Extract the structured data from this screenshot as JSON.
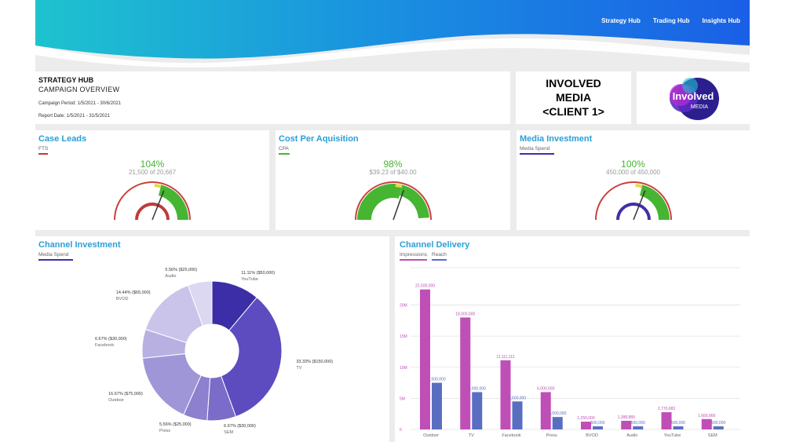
{
  "nav": {
    "items": [
      "Strategy Hub",
      "Trading Hub",
      "Insights Hub"
    ]
  },
  "header": {
    "title": "STRATEGY HUB",
    "subtitle": "CAMPAIGN OVERVIEW",
    "campaign_period": "Campaign Period: 1/5/2021 - 30/6/2021",
    "report_date": "Report Date: 1/5/2021 - 31/5/2021"
  },
  "client": {
    "line1": "INVOLVED",
    "line2": "MEDIA",
    "line3": "<CLIENT 1>"
  },
  "logo": {
    "line1": "Involved",
    "line2": "MEDIA"
  },
  "colors": {
    "accent_blue": "#2a9fd8",
    "green": "#46b532",
    "red_gauge": "#c03a3a",
    "purple_gauge": "#3f2fa8",
    "impressions": "#bf4fb7",
    "reach": "#5a6ec1"
  },
  "kpis": [
    {
      "title": "Case Leads",
      "sub": "FTS",
      "pct": "104%",
      "detail": "21,500  of 20,667",
      "progress": 1.04,
      "ring_color": "#c03a3a",
      "underline": "#c03a3a"
    },
    {
      "title": "Cost Per Aquisition",
      "sub": "CPA",
      "pct": "98%",
      "detail": "$39.23  of $40.00",
      "progress": 0.98,
      "ring_color": "#46b532",
      "underline": "#46b532"
    },
    {
      "title": "Media Investment",
      "sub": "Media Spend",
      "pct": "100%",
      "detail": "450,000  of 450,000",
      "progress": 1.0,
      "ring_color": "#3f2fa8",
      "underline": "#3f2fa8"
    }
  ],
  "channel_investment": {
    "title": "Channel Investment",
    "sub": "Media Spend"
  },
  "channel_delivery": {
    "title": "Channel Delivery",
    "legend": [
      "Impressions",
      "Reach"
    ]
  },
  "chart_data": [
    {
      "type": "pie",
      "title": "Channel Investment",
      "categories": [
        "YouTube",
        "TV",
        "SEM",
        "Press",
        "Outdoor",
        "Facebook",
        "BVOD",
        "Audio"
      ],
      "values": [
        50000,
        150000,
        30000,
        25000,
        75000,
        30000,
        65000,
        25000
      ],
      "labels": [
        "11.11% ($50,000)",
        "33.33% ($150,000)",
        "6.67% ($30,000)",
        "5.56% ($25,000)",
        "16.67% ($75,000)",
        "6.67% ($30,000)",
        "14.44% ($65,000)",
        "5.56% ($25,000)"
      ],
      "colors": [
        "#3b2ea6",
        "#5c4cbf",
        "#7a6cc8",
        "#8c80cf",
        "#9f96d7",
        "#b7b0e1",
        "#cac4ea",
        "#dcd8f1"
      ],
      "donut": true
    },
    {
      "type": "bar",
      "title": "Channel Delivery",
      "categories": [
        "Outdoor",
        "TV",
        "Facebook",
        "Press",
        "BVOD",
        "Audio",
        "YouTube",
        "SEM"
      ],
      "series": [
        {
          "name": "Impressions",
          "values": [
            22500000,
            18000000,
            11111111,
            6000000,
            1250000,
            1388889,
            2770083,
            1666666
          ],
          "labels": [
            "22,500,000",
            "18,000,000",
            "11,111,111",
            "6,000,000",
            "1,250,000",
            "1,388,889",
            "2,770,083",
            "1,666,666"
          ]
        },
        {
          "name": "Reach",
          "values": [
            7500000,
            6000000,
            4500000,
            2000000,
            500000,
            500000,
            500000,
            500000
          ],
          "labels": [
            "7,500,000",
            "6,000,000",
            "4,500,000",
            "2,000,000",
            "500,000",
            "500,000",
            "500,000",
            "500,000"
          ]
        }
      ],
      "yticks": [
        "0",
        "5M",
        "10M",
        "15M",
        "20M"
      ],
      "ylim": [
        0,
        25000000
      ],
      "grid": true
    }
  ]
}
